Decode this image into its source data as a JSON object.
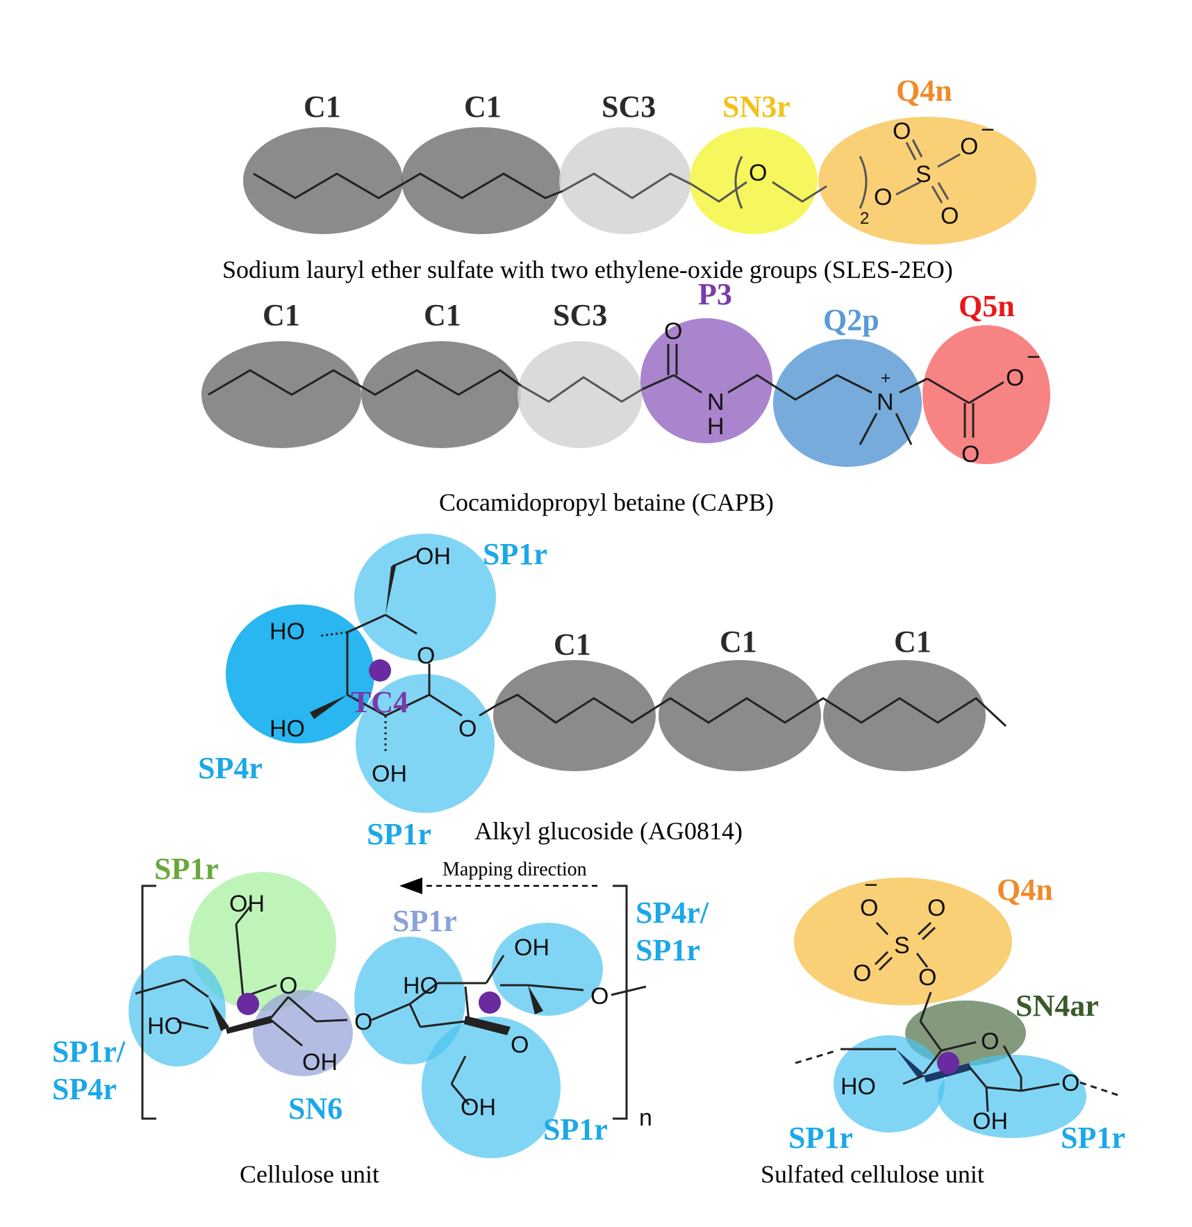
{
  "colors": {
    "C1": "#6e6e6e",
    "SC3": "#d4d4d4",
    "SN3r": "#f5f542",
    "Q4n": "#f8c04a",
    "P3": "#9b6fc4",
    "Q2p": "#4a8fd0",
    "Q5n": "#f55a5a",
    "SP1r": "#4cc3f0",
    "SP4r": "#12aef0",
    "SN6": "#9aa6d8",
    "SP1r_green": "#a8f0a0",
    "SN4ar": "#5a7a50",
    "label_dark": "#2a2a2a",
    "label_yellow": "#f2c21a",
    "label_orange": "#f08a2a",
    "label_purple": "#7a3aa8",
    "label_blue": "#5a9ad8",
    "label_red": "#e81818",
    "label_cyan": "#1aa8e8",
    "label_green": "#6aa83a",
    "label_lavender": "#8aa0d8",
    "label_darkgreen": "#3a5a2a"
  },
  "sles": {
    "labels": [
      "C1",
      "C1",
      "SC3",
      "SN3r",
      "Q4n"
    ],
    "subscript": "2",
    "atoms": [
      "O",
      "O",
      "S",
      "O",
      "O",
      "O"
    ],
    "charge": "−",
    "caption": "Sodium lauryl ether sulfate with two ethylene-oxide groups (SLES-2EO)"
  },
  "capb": {
    "labels": [
      "C1",
      "C1",
      "SC3",
      "P3",
      "Q2p",
      "Q5n"
    ],
    "atoms": [
      "O",
      "N",
      "H",
      "N",
      "O",
      "O"
    ],
    "charge_plus": "+",
    "charge_minus": "−",
    "caption": "Cocamidopropyl betaine (CAPB)"
  },
  "ag": {
    "labels": [
      "SP1r",
      "SP4r",
      "SP1r",
      "C1",
      "C1",
      "C1"
    ],
    "center_label": "TC4",
    "atoms": [
      "OH",
      "HO",
      "O",
      "HO",
      "OH",
      "O"
    ],
    "caption": "Alkyl glucoside (AG0814)"
  },
  "cellulose": {
    "labels": [
      "SP1r",
      "SP1r",
      "SP4r/",
      "SP1r",
      "SP1r/",
      "SP4r",
      "SN6",
      "SP1r"
    ],
    "arrow_label": "Mapping direction",
    "atoms": [
      "OH",
      "O",
      "HO",
      "OH",
      "O",
      "HO",
      "OH",
      "O",
      "O",
      "OH"
    ],
    "subscript": "n",
    "caption": "Cellulose unit"
  },
  "sulfated": {
    "labels": [
      "Q4n",
      "SN4ar",
      "SP1r",
      "SP1r"
    ],
    "atoms": [
      "O",
      "O",
      "S",
      "O",
      "O",
      "O",
      "O",
      "HO",
      "OH",
      "O"
    ],
    "charge": "−",
    "caption": "Sulfated cellulose unit"
  }
}
